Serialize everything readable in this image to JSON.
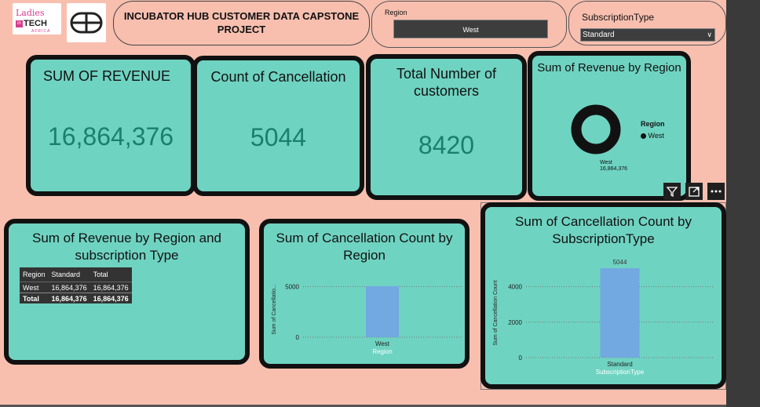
{
  "header": {
    "logo1": {
      "line1": "Ladies",
      "badge": "in",
      "line2": "TECH",
      "line3": "AFRICA"
    },
    "logo2_icon": "bb-monogram-icon",
    "title": "INCUBATOR HUB CUSTOMER DATA CAPSTONE PROJECT"
  },
  "slicers": {
    "region": {
      "label": "Region",
      "value": "West"
    },
    "subscription": {
      "label": "SubscriptionType",
      "value": "Standard"
    }
  },
  "kpis": {
    "revenue": {
      "title": "SUM OF REVENUE",
      "value": "16,864,376"
    },
    "cancellation": {
      "title": "Count of Cancellation",
      "value": "5044"
    },
    "customers": {
      "title": "Total Number of customers",
      "value": "8420"
    }
  },
  "visuals": {
    "donut": {
      "title": "Sum of Revenue by Region",
      "legend_title": "Region",
      "legend_item": "West",
      "label_name": "West",
      "label_value": "16,864,376",
      "color": "#111111"
    },
    "matrix": {
      "title": "Sum of Revenue by Region and subscription Type",
      "columns": [
        "Region",
        "Standard",
        "Total"
      ],
      "rows": [
        [
          "West",
          "16,864,376",
          "16,864,376"
        ],
        [
          "Total",
          "16,864,376",
          "16,864,376"
        ]
      ]
    },
    "cancel_region": {
      "title": "Sum of Cancellation Count by Region"
    },
    "cancel_sub": {
      "title": "Sum of Cancellation Count by SubscriptionType"
    }
  },
  "visual_header_icons": [
    "filter-icon",
    "focus-mode-icon",
    "more-options-icon"
  ],
  "chart_data": [
    {
      "type": "pie",
      "title": "Sum of Revenue by Region",
      "categories": [
        "West"
      ],
      "values": [
        16864376
      ],
      "legend": "right"
    },
    {
      "type": "bar",
      "title": "Sum of Cancellation Count by Region",
      "categories": [
        "West"
      ],
      "values": [
        5044
      ],
      "xlabel": "Region",
      "ylabel": "Sum of Cancellatio...",
      "yticks": [
        "0",
        "5000"
      ],
      "ylim": [
        0,
        5500
      ],
      "color": "#71a9e0",
      "grid": true
    },
    {
      "type": "bar",
      "title": "Sum of Cancellation Count by SubscriptionType",
      "categories": [
        "Standard"
      ],
      "values": [
        5044
      ],
      "data_labels": [
        "5044"
      ],
      "xlabel": "SubscriptionType",
      "ylabel": "Sum of Cancellation Count",
      "yticks": [
        "0",
        "2000",
        "4000"
      ],
      "ylim": [
        0,
        5044
      ],
      "color": "#71a9e0",
      "grid": true
    }
  ]
}
